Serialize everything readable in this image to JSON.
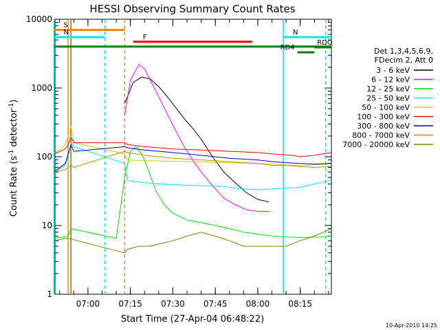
{
  "chart_data": {
    "type": "line",
    "title": "HESSI Observing Summary Count Rates",
    "xlabel": "Start Time (27-Apr-04 06:48:22)",
    "ylabel": "Count Rate (s",
    "ylabel_sup": "-1",
    "ylabel_tail": " detector",
    "ylabel_end": ")",
    "y_scale": "log",
    "ylim": [
      1,
      10000
    ],
    "xlim": [
      "06:48:22",
      "08:26:00"
    ],
    "x_ticks": [
      "07:00",
      "07:15",
      "07:30",
      "07:45",
      "08:00",
      "08:15"
    ],
    "y_ticks": [
      "1",
      "10",
      "100",
      "1000",
      "10000"
    ],
    "legend_header": [
      "Det 1,3,4,5,6,9,",
      "FDecim 2, Att 0"
    ],
    "footer_date": "10-Apr-2010 14:25",
    "series": [
      {
        "name": "3 - 6 keV",
        "color": "#000000",
        "x": [
          "07:13",
          "07:16",
          "07:19",
          "07:22",
          "07:25",
          "07:28",
          "07:31",
          "07:34",
          "07:37",
          "07:40",
          "07:44",
          "07:48",
          "07:52",
          "07:56",
          "08:00",
          "08:04"
        ],
        "y": [
          600,
          1200,
          1450,
          1350,
          1050,
          750,
          520,
          360,
          260,
          180,
          100,
          60,
          42,
          30,
          24,
          22
        ]
      },
      {
        "name": "6 - 12 keV",
        "color": "#ff00ff",
        "x": [
          "07:13",
          "07:15",
          "07:18",
          "07:20",
          "07:22",
          "07:25",
          "07:28",
          "07:31",
          "07:34",
          "07:37",
          "07:40",
          "07:44",
          "07:48",
          "07:52",
          "07:56",
          "08:00",
          "08:04"
        ],
        "y": [
          400,
          1300,
          2200,
          1900,
          1300,
          750,
          420,
          240,
          140,
          90,
          60,
          38,
          25,
          20,
          17,
          16,
          16
        ]
      },
      {
        "name": "12 - 25 keV",
        "color": "#00dd00",
        "x": [
          "06:48",
          "06:53",
          "06:54",
          "07:10",
          "07:13",
          "07:15",
          "07:17",
          "07:19",
          "07:21",
          "07:24",
          "07:27",
          "07:30",
          "07:35",
          "07:40",
          "07:45",
          "07:50",
          "07:55",
          "08:00",
          "08:05",
          "08:10",
          "08:15",
          "08:22",
          "08:26"
        ],
        "y": [
          6.5,
          7,
          9,
          6.5,
          50,
          120,
          140,
          110,
          70,
          32,
          20,
          15,
          12,
          11,
          10,
          9,
          8,
          7.5,
          7,
          6.8,
          6.7,
          6.8,
          7
        ]
      },
      {
        "name": "25 - 50 keV",
        "color": "#00e5ee",
        "x": [
          "06:48",
          "06:52",
          "06:53",
          "06:54",
          "06:55",
          "07:13",
          "07:14",
          "07:20",
          "07:26",
          "07:32",
          "07:40",
          "07:48",
          "07:55",
          "08:00",
          "08:05",
          "08:10",
          "08:15",
          "08:20",
          "08:26"
        ],
        "y": [
          60,
          75,
          100,
          160,
          140,
          80,
          45,
          42,
          40,
          39,
          38,
          37,
          34,
          33,
          34,
          35,
          36,
          40,
          46
        ]
      },
      {
        "name": "50 - 100 keV",
        "color": "#cccc00",
        "x": [
          "06:48",
          "06:52",
          "06:53",
          "06:54",
          "06:55",
          "07:13",
          "07:14",
          "07:20",
          "07:30",
          "07:40",
          "07:50",
          "08:00",
          "08:05",
          "08:10",
          "08:15",
          "08:20",
          "08:26"
        ],
        "y": [
          110,
          150,
          200,
          280,
          160,
          110,
          90,
          88,
          86,
          84,
          82,
          80,
          78,
          76,
          74,
          76,
          80
        ]
      },
      {
        "name": "100 - 300 keV",
        "color": "#ff0000",
        "x": [
          "06:48",
          "06:52",
          "06:53",
          "06:54",
          "06:55",
          "07:13",
          "07:14",
          "07:20",
          "07:30",
          "07:40",
          "07:50",
          "08:00",
          "08:05",
          "08:08",
          "08:12",
          "08:15",
          "08:20",
          "08:26"
        ],
        "y": [
          110,
          130,
          150,
          190,
          160,
          160,
          150,
          140,
          130,
          125,
          120,
          115,
          110,
          108,
          105,
          100,
          105,
          115
        ]
      },
      {
        "name": "300 - 800 keV",
        "color": "#0000cc",
        "x": [
          "06:48",
          "06:52",
          "06:53",
          "06:54",
          "06:55",
          "07:13",
          "07:14",
          "07:20",
          "07:30",
          "07:40",
          "07:50",
          "08:00",
          "08:05",
          "08:10",
          "08:15",
          "08:20",
          "08:26"
        ],
        "y": [
          60,
          80,
          110,
          150,
          120,
          140,
          135,
          125,
          115,
          105,
          95,
          90,
          85,
          82,
          80,
          78,
          80
        ]
      },
      {
        "name": "800 - 7000 keV",
        "color": "#cc8800",
        "x": [
          "06:48",
          "06:52",
          "06:53",
          "06:54",
          "06:55",
          "07:13",
          "07:14",
          "07:20",
          "07:30",
          "07:40",
          "07:50",
          "08:00",
          "08:05",
          "08:10",
          "08:15",
          "08:20",
          "08:26"
        ],
        "y": [
          60,
          65,
          70,
          75,
          70,
          120,
          115,
          105,
          95,
          90,
          85,
          80,
          75,
          75,
          72,
          70,
          72
        ]
      },
      {
        "name": "7000 - 20000 keV",
        "color": "#808000",
        "x": [
          "06:48",
          "06:52",
          "06:53",
          "07:13",
          "07:14",
          "07:18",
          "07:22",
          "07:26",
          "07:30",
          "07:35",
          "07:40",
          "07:45",
          "07:50",
          "07:55",
          "08:00",
          "08:05",
          "08:10",
          "08:15",
          "08:20",
          "08:26"
        ],
        "y": [
          6,
          6.5,
          6.5,
          4,
          4.5,
          5,
          5,
          5.5,
          6,
          7,
          8,
          7,
          6,
          5,
          5,
          5,
          5,
          6,
          7,
          9
        ]
      }
    ],
    "state_bars": [
      {
        "label": "S",
        "color": "#ff8800",
        "x": [
          "06:48",
          "07:13"
        ],
        "level": 7000
      },
      {
        "label": "N",
        "color": "#00e5ee",
        "x": [
          "06:48",
          "07:06"
        ],
        "level": 5500
      },
      {
        "label": "F",
        "color": "#ff0000",
        "x": [
          "07:16",
          "07:58"
        ],
        "level": 4700
      },
      {
        "label": "",
        "color": "#008000",
        "x": [
          "06:48",
          "08:26"
        ],
        "level": 4000
      },
      {
        "label": "N",
        "color": "#00e5ee",
        "x": [
          "08:09",
          "08:26"
        ],
        "level": 5500
      },
      {
        "label": "RD4",
        "color": "#008000",
        "x": [
          "08:14",
          "08:20"
        ],
        "level": 3300
      },
      {
        "label": "RDO",
        "color": "#008000",
        "x": [
          "08:20",
          "08:26"
        ],
        "level": 3900
      }
    ],
    "vertical_markers": [
      {
        "x": "06:48",
        "color": "#00e5ee",
        "style": "solid"
      },
      {
        "x": "06:53",
        "color": "#ff8800",
        "style": "solid"
      },
      {
        "x": "06:54",
        "color": "#808000",
        "style": "solid"
      },
      {
        "x": "07:06",
        "color": "#00e5ee",
        "style": "dashed"
      },
      {
        "x": "07:13",
        "color": "#ff8800",
        "style": "dashed"
      },
      {
        "x": "08:09",
        "color": "#00e5ee",
        "style": "solid"
      },
      {
        "x": "08:24",
        "color": "#00e5ee",
        "style": "dashed"
      }
    ]
  }
}
